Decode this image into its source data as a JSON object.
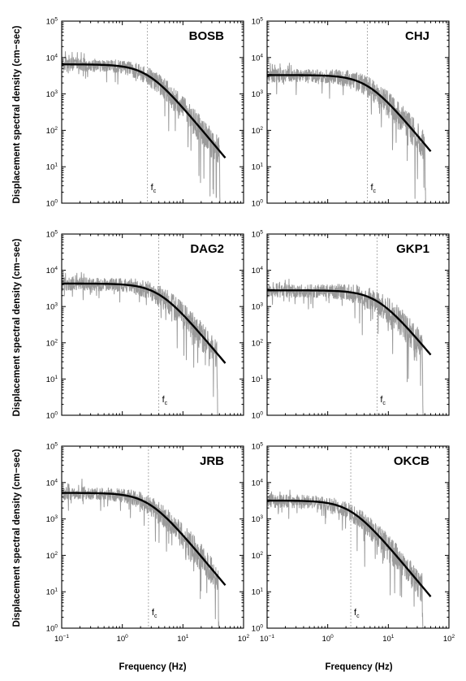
{
  "figure": {
    "ylabel": "Displacement spectral density (cm−sec)",
    "xlabel": "Frequency (Hz)",
    "fc_label_main": "f",
    "fc_label_sub": "c"
  },
  "chart_data": [
    {
      "type": "line",
      "title": "BOSB",
      "xscale": "log",
      "yscale": "log",
      "xlim": [
        0.1,
        100
      ],
      "ylim": [
        1,
        100000
      ],
      "model": {
        "omega0": 6500,
        "fc": 2.6,
        "fmin": 0.1,
        "fmax": 50
      },
      "observed_range": {
        "fmin": 0.1,
        "fmax": 42
      }
    },
    {
      "type": "line",
      "title": "CHJ",
      "xscale": "log",
      "yscale": "log",
      "xlim": [
        0.1,
        100
      ],
      "ylim": [
        1,
        100000
      ],
      "model": {
        "omega0": 3300,
        "fc": 4.5,
        "fmin": 0.1,
        "fmax": 50
      },
      "observed_range": {
        "fmin": 0.1,
        "fmax": 42
      }
    },
    {
      "type": "line",
      "title": "DAG2",
      "xscale": "log",
      "yscale": "log",
      "xlim": [
        0.1,
        100
      ],
      "ylim": [
        1,
        100000
      ],
      "model": {
        "omega0": 4300,
        "fc": 4.0,
        "fmin": 0.1,
        "fmax": 50
      },
      "observed_range": {
        "fmin": 0.1,
        "fmax": 38
      }
    },
    {
      "type": "line",
      "title": "GKP1",
      "xscale": "log",
      "yscale": "log",
      "xlim": [
        0.1,
        100
      ],
      "ylim": [
        1,
        100000
      ],
      "model": {
        "omega0": 2800,
        "fc": 6.5,
        "fmin": 0.1,
        "fmax": 50
      },
      "observed_range": {
        "fmin": 0.1,
        "fmax": 38
      }
    },
    {
      "type": "line",
      "title": "JRB",
      "xscale": "log",
      "yscale": "log",
      "xlim": [
        0.1,
        100
      ],
      "ylim": [
        1,
        100000
      ],
      "model": {
        "omega0": 5200,
        "fc": 2.7,
        "fmin": 0.1,
        "fmax": 50
      },
      "observed_range": {
        "fmin": 0.1,
        "fmax": 40
      }
    },
    {
      "type": "line",
      "title": "OKCB",
      "xscale": "log",
      "yscale": "log",
      "xlim": [
        0.1,
        100
      ],
      "ylim": [
        1,
        100000
      ],
      "model": {
        "omega0": 3200,
        "fc": 2.4,
        "fmin": 0.1,
        "fmax": 50
      },
      "observed_range": {
        "fmin": 0.1,
        "fmax": 38
      }
    }
  ],
  "ticks": {
    "x": [
      {
        "value": 0.1,
        "base": "10",
        "exp": "−1"
      },
      {
        "value": 1,
        "base": "10",
        "exp": "0"
      },
      {
        "value": 10,
        "base": "10",
        "exp": "1"
      },
      {
        "value": 100,
        "base": "10",
        "exp": "2"
      }
    ],
    "y": [
      {
        "value": 1,
        "base": "10",
        "exp": "0"
      },
      {
        "value": 10,
        "base": "10",
        "exp": "1"
      },
      {
        "value": 100,
        "base": "10",
        "exp": "2"
      },
      {
        "value": 1000,
        "base": "10",
        "exp": "3"
      },
      {
        "value": 10000,
        "base": "10",
        "exp": "4"
      },
      {
        "value": 100000,
        "base": "10",
        "exp": "5"
      }
    ]
  },
  "colors": {
    "observed": "#9a9a9a",
    "model": "#000000"
  }
}
